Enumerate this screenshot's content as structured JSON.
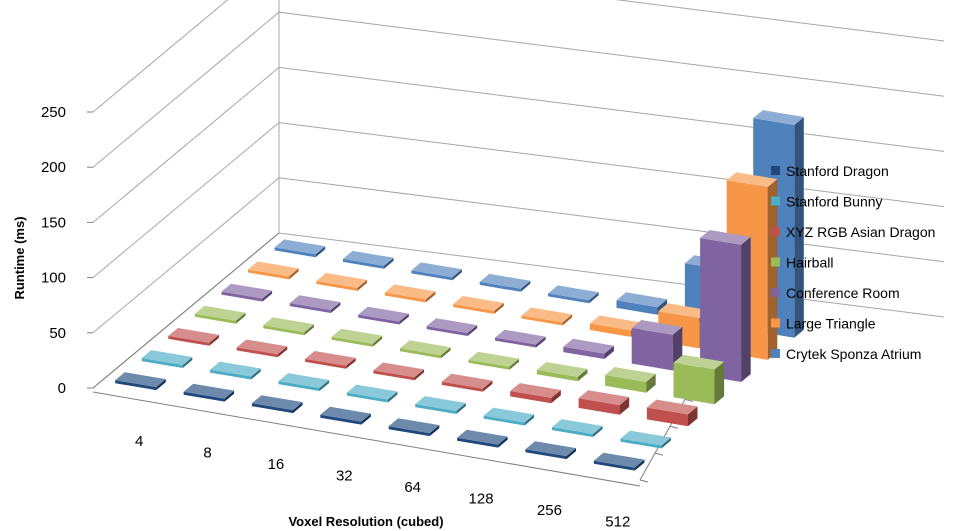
{
  "chart_data": {
    "type": "bar",
    "subtype": "3d-bar",
    "title": "",
    "xlabel": "Voxel Resolution (cubed)",
    "ylabel": "Runtime (ms)",
    "ylim": [
      0,
      250
    ],
    "y_ticks": [
      "0",
      "50",
      "100",
      "150",
      "200",
      "250"
    ],
    "categories": [
      "4",
      "8",
      "16",
      "32",
      "64",
      "128",
      "256",
      "512"
    ],
    "grid": true,
    "legend_position": "right",
    "series": [
      {
        "name": "Stanford Dragon",
        "color": "#1f497d",
        "values": [
          0.3,
          0.3,
          0.3,
          0.3,
          0.4,
          0.4,
          0.5,
          0.8
        ]
      },
      {
        "name": "Stanford Bunny",
        "color": "#4bacc6",
        "values": [
          0.3,
          0.3,
          0.3,
          0.3,
          0.4,
          0.5,
          0.8,
          2
        ]
      },
      {
        "name": "XYZ RGB Asian Dragon",
        "color": "#c0504d",
        "values": [
          1,
          2,
          2,
          2,
          3,
          5,
          9,
          11
        ]
      },
      {
        "name": "Hairball",
        "color": "#9bbb59",
        "values": [
          1,
          1,
          1,
          1,
          2,
          4,
          10,
          32
        ]
      },
      {
        "name": "Conference Room",
        "color": "#8064a2",
        "values": [
          0.5,
          0.5,
          0.5,
          1,
          2,
          5,
          33,
          127
        ]
      },
      {
        "name": "Large Triangle",
        "color": "#f79646",
        "values": [
          0.3,
          0.3,
          0.3,
          0.5,
          1,
          6,
          28,
          160
        ]
      },
      {
        "name": "Crytek Sponza Atrium",
        "color": "#4f81bd",
        "values": [
          0.3,
          0.3,
          0.3,
          0.5,
          1,
          7,
          52,
          197
        ]
      }
    ]
  }
}
